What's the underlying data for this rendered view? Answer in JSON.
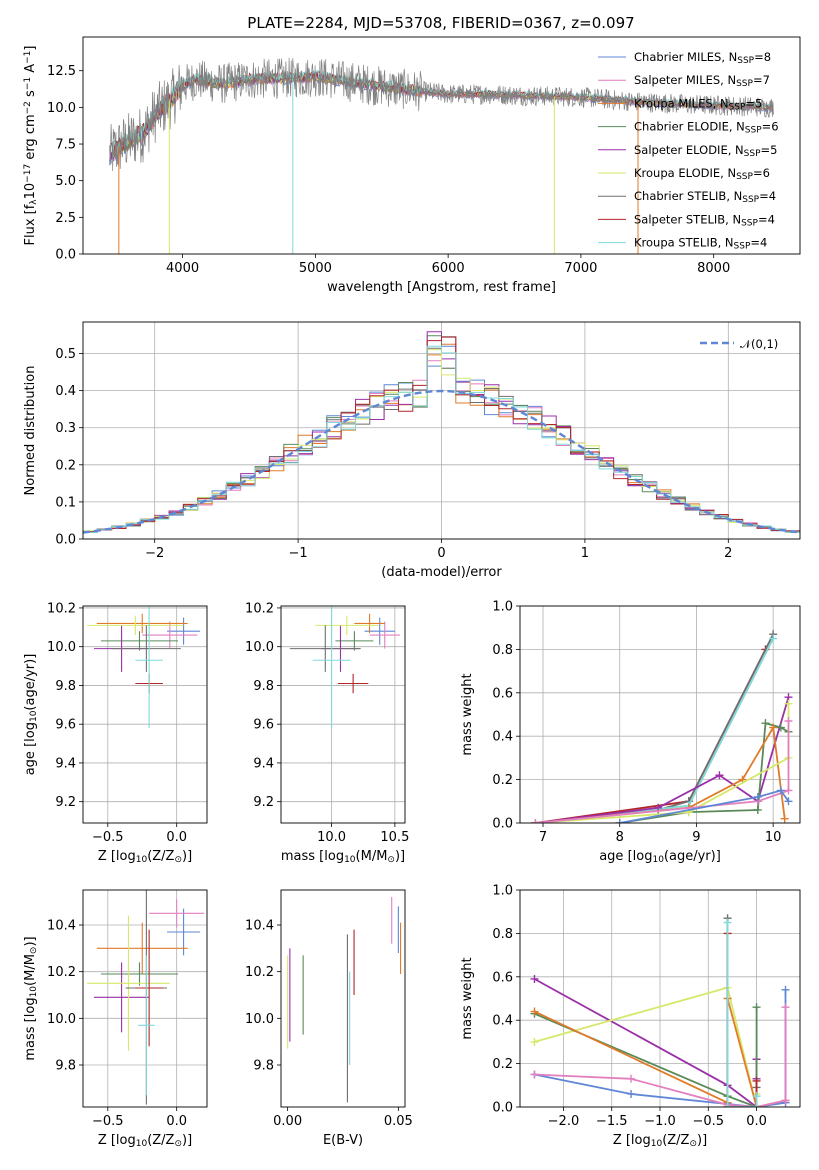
{
  "title": "PLATE=2284, MJD=53708, FIBERID=0367, z=0.097",
  "colors": {
    "blue": "#5f87d6",
    "orange": "#e07b2a",
    "green": "#5a8a5a",
    "purple": "#9b30a8",
    "pink": "#e37fbf",
    "yellow": "#d6e86a",
    "grey": "#6f6f6f",
    "red": "#b3262a",
    "cyan": "#7fd9d9",
    "dark": "#444444"
  },
  "chart_data": [
    {
      "type": "line",
      "id": "spectrum",
      "xlabel": "wavelength [Angstrom, rest frame]",
      "ylabel": "Flux [f$_\\lambda$10$^{-17}$ erg cm$^{-2}$ s$^{-1}$ A$^{-1}$]",
      "xlim": [
        3250,
        8650
      ],
      "ylim": [
        0,
        14.8
      ],
      "xticks": [
        4000,
        5000,
        6000,
        7000,
        8000
      ],
      "yticks": [
        0.0,
        2.5,
        5.0,
        7.5,
        10.0,
        12.5
      ],
      "grid": false,
      "legend_position": "upper right",
      "series": [
        {
          "name": "Chabrier MILES, N$_{SSP}$=8",
          "color": "blue"
        },
        {
          "name": "Salpeter MILES, N$_{SSP}$=7",
          "color": "pink"
        },
        {
          "name": "Kroupa MILES, N$_{SSP}$=5",
          "color": "orange"
        },
        {
          "name": "Chabrier ELODIE, N$_{SSP}$=6",
          "color": "green"
        },
        {
          "name": "Salpeter ELODIE, N$_{SSP}$=5",
          "color": "purple"
        },
        {
          "name": "Kroupa ELODIE, N$_{SSP}$=6",
          "color": "yellow"
        },
        {
          "name": "Chabrier STELIB, N$_{SSP}$=4",
          "color": "grey"
        },
        {
          "name": "Salpeter STELIB, N$_{SSP}$=4",
          "color": "red"
        },
        {
          "name": "Kroupa STELIB, N$_{SSP}$=4",
          "color": "cyan"
        }
      ],
      "continuum_points": [
        [
          3450,
          6.8
        ],
        [
          3550,
          7.5
        ],
        [
          3700,
          8.2
        ],
        [
          3800,
          9.6
        ],
        [
          3900,
          10.4
        ],
        [
          4000,
          11.5
        ],
        [
          4100,
          11.9
        ],
        [
          4300,
          11.6
        ],
        [
          4500,
          11.9
        ],
        [
          4800,
          12.0
        ],
        [
          5000,
          12.1
        ],
        [
          5300,
          11.7
        ],
        [
          5600,
          11.3
        ],
        [
          6000,
          10.9
        ],
        [
          6300,
          10.9
        ],
        [
          6600,
          10.8
        ],
        [
          7000,
          10.7
        ],
        [
          7400,
          10.4
        ],
        [
          7800,
          10.2
        ],
        [
          8200,
          10.1
        ],
        [
          8400,
          10.0
        ]
      ]
    },
    {
      "type": "histogram",
      "id": "residuals",
      "xlabel": "(data-model)/error",
      "ylabel": "Normed distribution",
      "xlim": [
        -2.5,
        2.5
      ],
      "ylim": [
        0,
        0.585
      ],
      "xticks": [
        -2,
        -1,
        0,
        1,
        2
      ],
      "yticks": [
        0.0,
        0.1,
        0.2,
        0.3,
        0.4,
        0.5
      ],
      "grid": true,
      "legend_position": "upper right",
      "reference_curve": {
        "name": "$\\mathcal{N}(0,1)$",
        "mean": 0,
        "sigma": 1,
        "color": "blue"
      },
      "bin_width": 0.1,
      "series_colors": [
        "blue",
        "pink",
        "orange",
        "green",
        "purple",
        "yellow",
        "grey",
        "red",
        "cyan"
      ]
    },
    {
      "type": "scatter",
      "id": "age-vs-Z",
      "xlabel": "Z [log$_{10}$(Z/Z$_\\odot$)]",
      "ylabel": "age  [log$_{10}$(age/yr)]",
      "xlim": [
        -0.68,
        0.22
      ],
      "ylim": [
        9.09,
        10.21
      ],
      "xticks": [
        -0.5,
        0.0
      ],
      "yticks": [
        9.2,
        9.4,
        9.6,
        9.8,
        10.0,
        10.2
      ],
      "grid": true,
      "points": [
        {
          "color": "blue",
          "x": 0.05,
          "xerr": 0.12,
          "y": 10.08,
          "yerr": 0.07
        },
        {
          "color": "pink",
          "x": -0.05,
          "xerr": 0.2,
          "y": 10.06,
          "yerr": 0.07
        },
        {
          "color": "orange",
          "x": -0.25,
          "xerr": 0.33,
          "y": 10.12,
          "yerr": 0.05
        },
        {
          "color": "green",
          "x": -0.27,
          "xerr": 0.28,
          "y": 10.03,
          "yerr": 0.05
        },
        {
          "color": "purple",
          "x": -0.4,
          "xerr": 0.2,
          "y": 9.99,
          "yerr": 0.12
        },
        {
          "color": "yellow",
          "x": -0.3,
          "xerr": 0.35,
          "y": 10.11,
          "yerr": 0.05
        },
        {
          "color": "grey",
          "x": -0.22,
          "xerr": 0.25,
          "y": 9.99,
          "yerr": 0.12
        },
        {
          "color": "red",
          "x": -0.2,
          "xerr": 0.1,
          "y": 9.81,
          "yerr": 0.05
        },
        {
          "color": "cyan",
          "x": -0.2,
          "xerr": 0.1,
          "y": 9.93,
          "yerr": 0.35
        }
      ]
    },
    {
      "type": "scatter",
      "id": "age-vs-mass",
      "xlabel": "mass [log$_{10}$(M/M$_\\odot$)]",
      "ylabel": "",
      "xlim": [
        9.6,
        10.58
      ],
      "ylim": [
        9.09,
        10.21
      ],
      "xticks": [
        10.0,
        10.5
      ],
      "yticks": [
        9.2,
        9.4,
        9.6,
        9.8,
        10.0,
        10.2
      ],
      "grid": true,
      "points": [
        {
          "color": "blue",
          "x": 10.38,
          "xerr": 0.12,
          "y": 10.08,
          "yerr": 0.07
        },
        {
          "color": "pink",
          "x": 10.42,
          "xerr": 0.12,
          "y": 10.06,
          "yerr": 0.07
        },
        {
          "color": "orange",
          "x": 10.3,
          "xerr": 0.12,
          "y": 10.12,
          "yerr": 0.05
        },
        {
          "color": "green",
          "x": 10.18,
          "xerr": 0.15,
          "y": 10.03,
          "yerr": 0.05
        },
        {
          "color": "purple",
          "x": 10.07,
          "xerr": 0.15,
          "y": 9.99,
          "yerr": 0.12
        },
        {
          "color": "yellow",
          "x": 10.12,
          "xerr": 0.25,
          "y": 10.11,
          "yerr": 0.05
        },
        {
          "color": "grey",
          "x": 9.95,
          "xerr": 0.28,
          "y": 9.99,
          "yerr": 0.12
        },
        {
          "color": "red",
          "x": 10.17,
          "xerr": 0.12,
          "y": 9.81,
          "yerr": 0.05
        },
        {
          "color": "cyan",
          "x": 10.0,
          "xerr": 0.15,
          "y": 9.93,
          "yerr": 0.35
        }
      ]
    },
    {
      "type": "line",
      "id": "mass-weight-vs-age",
      "xlabel": "age  [log$_{10}$(age/yr)]",
      "ylabel": "mass weight",
      "xlim": [
        6.7,
        10.35
      ],
      "ylim": [
        0,
        1.0
      ],
      "xticks": [
        7,
        8,
        9,
        10
      ],
      "yticks": [
        0.0,
        0.2,
        0.4,
        0.6,
        0.8,
        1.0
      ],
      "grid": true,
      "series": [
        {
          "color": "red",
          "points": [
            [
              6.9,
              0.0
            ],
            [
              8.9,
              0.1
            ],
            [
              9.9,
              0.8
            ]
          ]
        },
        {
          "color": "grey",
          "points": [
            [
              8.5,
              0.06
            ],
            [
              8.9,
              0.1
            ],
            [
              10.0,
              0.87
            ]
          ]
        },
        {
          "color": "cyan",
          "points": [
            [
              6.9,
              0.0
            ],
            [
              8.9,
              0.08
            ],
            [
              10.0,
              0.85
            ]
          ]
        },
        {
          "color": "purple",
          "points": [
            [
              6.9,
              0.0
            ],
            [
              8.5,
              0.07
            ],
            [
              9.3,
              0.22
            ],
            [
              9.8,
              0.1
            ],
            [
              10.2,
              0.58
            ]
          ]
        },
        {
          "color": "green",
          "points": [
            [
              8.0,
              0.0
            ],
            [
              8.9,
              0.05
            ],
            [
              9.8,
              0.06
            ],
            [
              9.9,
              0.46
            ],
            [
              10.1,
              0.44
            ],
            [
              10.2,
              0.42
            ]
          ]
        },
        {
          "color": "orange",
          "points": [
            [
              6.9,
              0.0
            ],
            [
              8.9,
              0.07
            ],
            [
              9.6,
              0.2
            ],
            [
              10.0,
              0.44
            ],
            [
              10.15,
              0.02
            ]
          ]
        },
        {
          "color": "yellow",
          "points": [
            [
              6.9,
              0.0
            ],
            [
              8.9,
              0.05
            ],
            [
              10.2,
              0.3
            ],
            [
              10.2,
              0.55
            ]
          ]
        },
        {
          "color": "pink",
          "points": [
            [
              6.9,
              0.0
            ],
            [
              9.8,
              0.1
            ],
            [
              10.2,
              0.15
            ],
            [
              10.2,
              0.47
            ]
          ]
        },
        {
          "color": "blue",
          "points": [
            [
              8.0,
              0.0
            ],
            [
              9.8,
              0.12
            ],
            [
              10.1,
              0.15
            ],
            [
              10.2,
              0.1
            ]
          ]
        }
      ]
    },
    {
      "type": "scatter",
      "id": "mass-vs-Z",
      "xlabel": "Z [log$_{10}$(Z/Z$_\\odot$)]",
      "ylabel": "mass [log$_{10}$(M/M$_\\odot$)]",
      "xlim": [
        -0.68,
        0.22
      ],
      "ylim": [
        9.62,
        10.55
      ],
      "xticks": [
        -0.5,
        0.0
      ],
      "yticks": [
        9.8,
        10.0,
        10.2,
        10.4
      ],
      "grid": true,
      "points": [
        {
          "color": "blue",
          "x": 0.05,
          "xerr": 0.12,
          "y": 10.37,
          "yerr": 0.1
        },
        {
          "color": "pink",
          "x": 0.0,
          "xerr": 0.2,
          "y": 10.45,
          "yerr": 0.06
        },
        {
          "color": "orange",
          "x": -0.25,
          "xerr": 0.33,
          "y": 10.3,
          "yerr": 0.11
        },
        {
          "color": "green",
          "x": -0.27,
          "xerr": 0.28,
          "y": 10.19,
          "yerr": 0.05
        },
        {
          "color": "purple",
          "x": -0.4,
          "xerr": 0.2,
          "y": 10.09,
          "yerr": 0.15
        },
        {
          "color": "yellow",
          "x": -0.35,
          "xerr": 0.3,
          "y": 10.15,
          "yerr": 0.29
        },
        {
          "color": "grey",
          "x": -0.22,
          "xerr": 0.15,
          "y": 10.13,
          "yerr": 0.5
        },
        {
          "color": "red",
          "x": -0.2,
          "xerr": 0.1,
          "y": 10.13,
          "yerr": 0.25
        },
        {
          "color": "cyan",
          "x": -0.22,
          "xerr": 0.06,
          "y": 9.97,
          "yerr": 0.3
        }
      ]
    },
    {
      "type": "scatter",
      "id": "mass-vs-ebv",
      "xlabel": "E(B-V)",
      "ylabel": "",
      "xlim": [
        -0.003,
        0.053
      ],
      "ylim": [
        9.62,
        10.55
      ],
      "xticks": [
        0.0,
        0.05
      ],
      "yticks": [
        9.8,
        10.0,
        10.2,
        10.4
      ],
      "grid": false,
      "points": [
        {
          "color": "yellow",
          "x": 0.0,
          "y": 10.07,
          "yerr": 0.2
        },
        {
          "color": "purple",
          "x": 0.001,
          "y": 10.1,
          "yerr": 0.2
        },
        {
          "color": "green",
          "x": 0.007,
          "y": 10.1,
          "yerr": 0.17
        },
        {
          "color": "grey",
          "x": 0.027,
          "y": 10.0,
          "yerr": 0.36
        },
        {
          "color": "cyan",
          "x": 0.028,
          "y": 10.0,
          "yerr": 0.2
        },
        {
          "color": "red",
          "x": 0.03,
          "y": 10.24,
          "yerr": 0.14
        },
        {
          "color": "pink",
          "x": 0.047,
          "y": 10.42,
          "yerr": 0.1
        },
        {
          "color": "blue",
          "x": 0.05,
          "y": 10.38,
          "yerr": 0.1
        },
        {
          "color": "orange",
          "x": 0.051,
          "y": 10.3,
          "yerr": 0.11
        }
      ]
    },
    {
      "type": "line",
      "id": "mass-weight-vs-Z",
      "xlabel": "Z [log$_{10}$(Z/Z$_\\odot$)]",
      "ylabel": "mass weight",
      "xlim": [
        -2.45,
        0.45
      ],
      "ylim": [
        0,
        1.0
      ],
      "xticks": [
        -2.0,
        -1.5,
        -1.0,
        -0.5,
        0.0
      ],
      "yticks": [
        0.0,
        0.2,
        0.4,
        0.6,
        0.8,
        1.0
      ],
      "grid": true,
      "series": [
        {
          "color": "purple",
          "points": [
            [
              -2.3,
              0.59
            ],
            [
              -0.3,
              0.1
            ],
            [
              0.0,
              0.0
            ],
            [
              0.0,
              0.22
            ],
            [
              0.0,
              0.13
            ]
          ]
        },
        {
          "color": "yellow",
          "points": [
            [
              -2.3,
              0.3
            ],
            [
              -0.3,
              0.55
            ],
            [
              0.0,
              0.0
            ],
            [
              0.0,
              0.06
            ]
          ]
        },
        {
          "color": "green",
          "points": [
            [
              -2.3,
              0.43
            ],
            [
              -0.3,
              0.05
            ],
            [
              0.0,
              0.0
            ],
            [
              0.0,
              0.46
            ]
          ]
        },
        {
          "color": "orange",
          "points": [
            [
              -2.3,
              0.44
            ],
            [
              -0.3,
              0.02
            ],
            [
              -0.3,
              0.5
            ],
            [
              0.0,
              0.0
            ],
            [
              0.3,
              0.03
            ]
          ]
        },
        {
          "color": "blue",
          "points": [
            [
              -2.3,
              0.15
            ],
            [
              -1.3,
              0.06
            ],
            [
              0.0,
              0.0
            ],
            [
              0.3,
              0.02
            ],
            [
              0.3,
              0.54
            ]
          ]
        },
        {
          "color": "pink",
          "points": [
            [
              -2.3,
              0.15
            ],
            [
              -1.3,
              0.13
            ],
            [
              -0.3,
              0.01
            ],
            [
              0.0,
              0.0
            ],
            [
              0.3,
              0.03
            ],
            [
              0.3,
              0.46
            ]
          ]
        },
        {
          "color": "grey",
          "points": [
            [
              -0.3,
              0.87
            ],
            [
              -0.3,
              0.0
            ],
            [
              0.0,
              0.0
            ],
            [
              0.0,
              0.09
            ]
          ]
        },
        {
          "color": "red",
          "points": [
            [
              -0.3,
              0.8
            ],
            [
              -0.3,
              0.0
            ],
            [
              0.0,
              0.0
            ],
            [
              0.0,
              0.12
            ]
          ]
        },
        {
          "color": "cyan",
          "points": [
            [
              -0.3,
              0.85
            ],
            [
              -0.3,
              0.0
            ],
            [
              0.0,
              0.0
            ],
            [
              0.0,
              0.05
            ]
          ]
        }
      ]
    }
  ]
}
